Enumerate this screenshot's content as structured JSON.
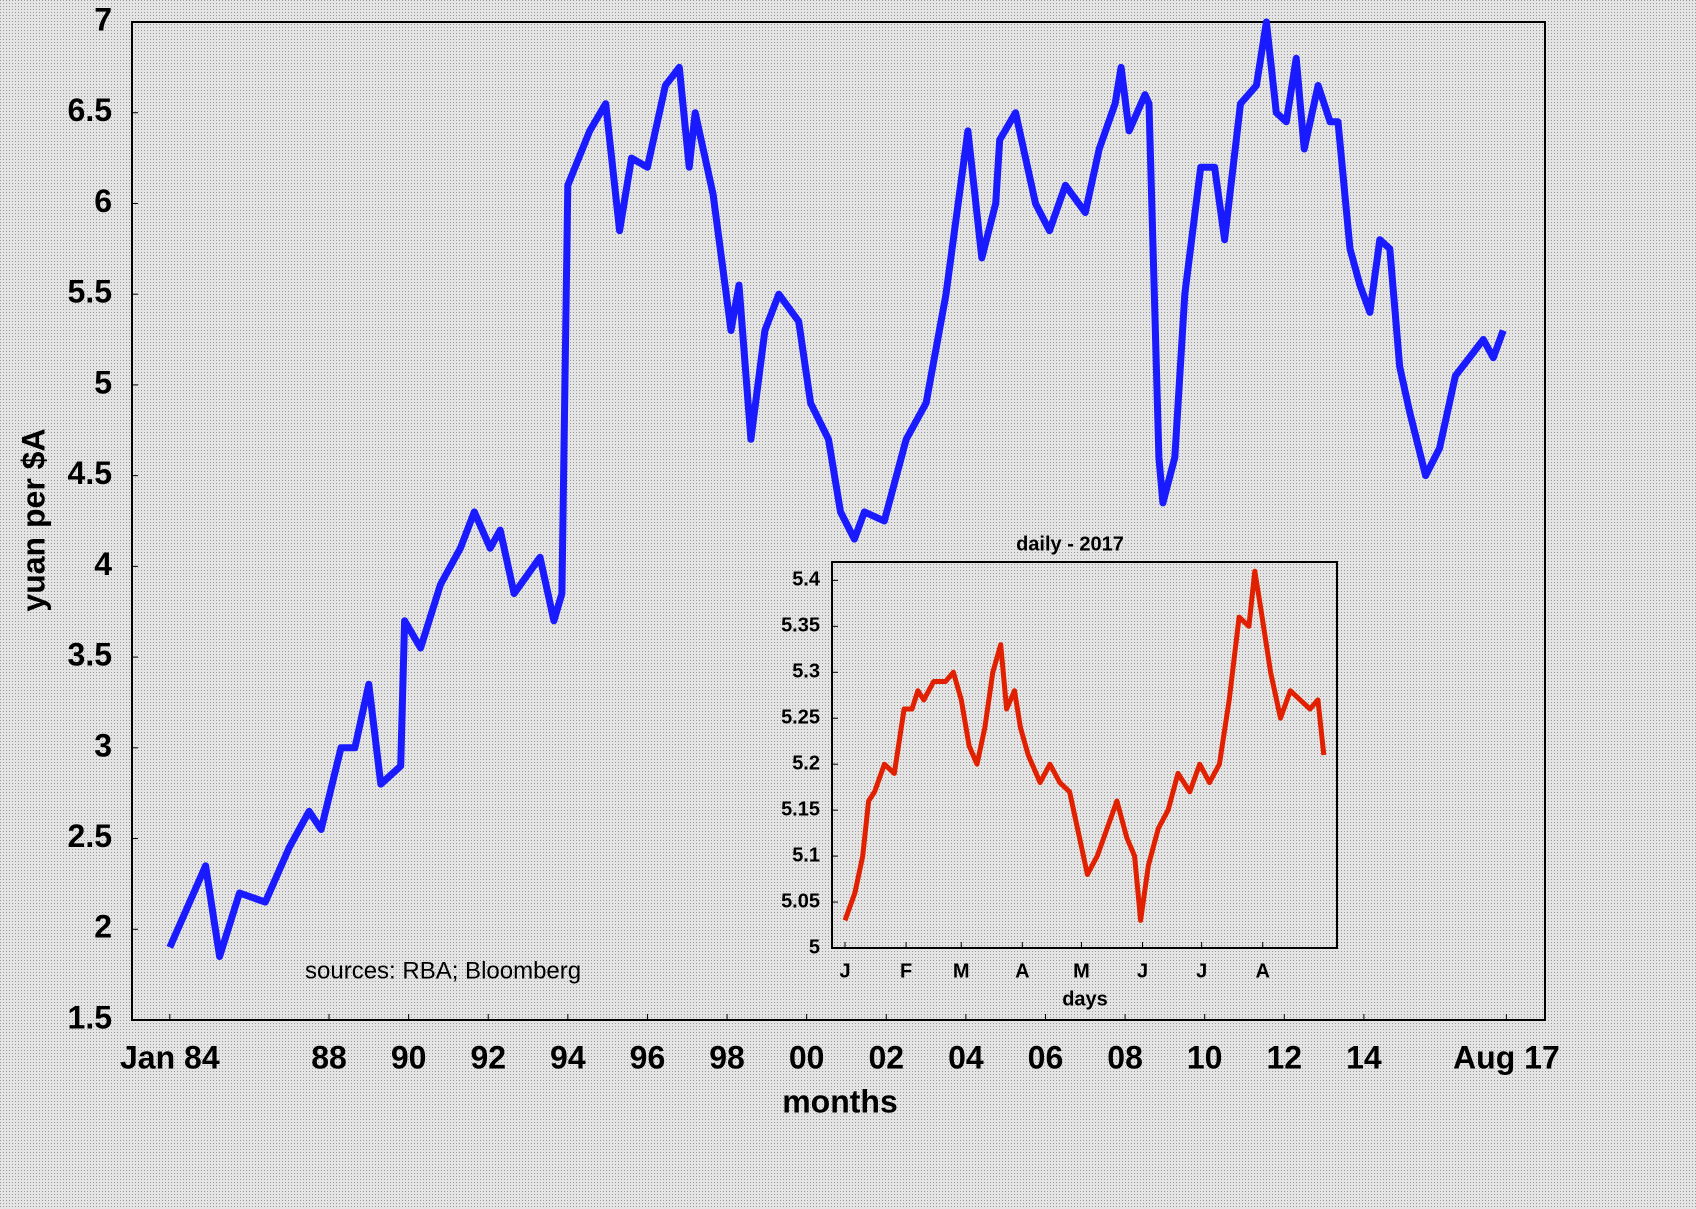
{
  "chart_data": [
    {
      "type": "line",
      "ylabel": "yuan per $A",
      "xlabel": "months",
      "annotation": "sources: RBA; Bloomberg",
      "x": [
        1984.0,
        1984.9,
        1985.25,
        1985.75,
        1986.4,
        1987.0,
        1987.5,
        1987.8,
        1988.3,
        1988.65,
        1989.0,
        1989.3,
        1989.8,
        1989.9,
        1990.3,
        1990.8,
        1991.3,
        1991.65,
        1992.05,
        1992.3,
        1992.65,
        1993.3,
        1993.65,
        1993.85,
        1994.0,
        1994.55,
        1994.95,
        1995.3,
        1995.6,
        1996.0,
        1996.45,
        1996.8,
        1997.05,
        1997.2,
        1997.65,
        1998.1,
        1998.3,
        1998.6,
        1998.95,
        1999.3,
        1999.8,
        2000.1,
        2000.55,
        2000.85,
        2001.2,
        2001.45,
        2001.95,
        2002.5,
        2003.0,
        2003.5,
        2004.05,
        2004.4,
        2004.75,
        2004.85,
        2005.25,
        2005.75,
        2006.1,
        2006.5,
        2007.0,
        2007.35,
        2007.75,
        2007.9,
        2008.1,
        2008.5,
        2008.6,
        2008.85,
        2008.95,
        2009.25,
        2009.5,
        2009.9,
        2010.25,
        2010.5,
        2010.9,
        2011.3,
        2011.55,
        2011.8,
        2012.05,
        2012.3,
        2012.5,
        2012.85,
        2013.15,
        2013.35,
        2013.65,
        2013.9,
        2014.15,
        2014.4,
        2014.65,
        2014.9,
        2015.15,
        2015.55,
        2015.9,
        2016.3,
        2016.65,
        2017.0,
        2017.25,
        2017.5
      ],
      "series": [
        {
          "name": "yuan per $A",
          "color": "#1a1aff",
          "values": [
            1.9,
            2.35,
            1.85,
            2.2,
            2.15,
            2.45,
            2.65,
            2.55,
            3.0,
            3.0,
            3.35,
            2.8,
            2.9,
            3.7,
            3.55,
            3.9,
            4.1,
            4.3,
            4.1,
            4.2,
            3.85,
            4.05,
            3.7,
            3.85,
            6.1,
            6.4,
            6.55,
            5.85,
            6.25,
            6.2,
            6.65,
            6.75,
            6.2,
            6.5,
            6.05,
            5.3,
            5.55,
            4.7,
            5.3,
            5.5,
            5.35,
            4.9,
            4.7,
            4.3,
            4.15,
            4.3,
            4.25,
            4.7,
            4.9,
            5.5,
            6.4,
            5.7,
            6.0,
            6.35,
            6.5,
            6.0,
            5.85,
            6.1,
            5.95,
            6.3,
            6.55,
            6.75,
            6.4,
            6.6,
            6.55,
            4.6,
            4.35,
            4.6,
            5.5,
            6.2,
            6.2,
            5.8,
            6.55,
            6.65,
            7.0,
            6.5,
            6.45,
            6.8,
            6.3,
            6.65,
            6.45,
            6.45,
            5.75,
            5.55,
            5.4,
            5.8,
            5.75,
            5.1,
            4.85,
            4.5,
            4.65,
            5.05,
            5.15,
            5.25,
            5.15,
            5.3
          ]
        }
      ],
      "xlim": [
        1983.05,
        2018.55
      ],
      "ylim": [
        1.5,
        7
      ],
      "xticks": [
        {
          "value": 1984,
          "label": "Jan 84"
        },
        {
          "value": 1988,
          "label": "88"
        },
        {
          "value": 1990,
          "label": "90"
        },
        {
          "value": 1992,
          "label": "92"
        },
        {
          "value": 1994,
          "label": "94"
        },
        {
          "value": 1996,
          "label": "96"
        },
        {
          "value": 1998,
          "label": "98"
        },
        {
          "value": 2000,
          "label": "00"
        },
        {
          "value": 2002,
          "label": "02"
        },
        {
          "value": 2004,
          "label": "04"
        },
        {
          "value": 2006,
          "label": "06"
        },
        {
          "value": 2008,
          "label": "08"
        },
        {
          "value": 2010,
          "label": "10"
        },
        {
          "value": 2012,
          "label": "12"
        },
        {
          "value": 2014,
          "label": "14"
        },
        {
          "value": 2017.58,
          "label": "Aug 17"
        }
      ],
      "yticks": [
        1.5,
        2,
        2.5,
        3,
        3.5,
        4,
        4.5,
        5,
        5.5,
        6,
        6.5,
        7
      ]
    },
    {
      "type": "line",
      "title": "daily - 2017",
      "xlabel": "days",
      "x": [
        1,
        6,
        10,
        13,
        16,
        21,
        26,
        31,
        35,
        38,
        41,
        46,
        52,
        56,
        60,
        64,
        68,
        72,
        76,
        80,
        83,
        87,
        90,
        94,
        100,
        105,
        110,
        115,
        120,
        124,
        129,
        134,
        139,
        144,
        148,
        151,
        155,
        160,
        165,
        170,
        176,
        181,
        186,
        191,
        196,
        201,
        206,
        209,
        212,
        217,
        222,
        227,
        232,
        237,
        241,
        244
      ],
      "series": [
        {
          "name": "daily",
          "color": "#e02000",
          "values": [
            5.03,
            5.06,
            5.1,
            5.16,
            5.17,
            5.2,
            5.19,
            5.26,
            5.26,
            5.28,
            5.27,
            5.29,
            5.29,
            5.3,
            5.27,
            5.22,
            5.2,
            5.24,
            5.3,
            5.33,
            5.26,
            5.28,
            5.24,
            5.21,
            5.18,
            5.2,
            5.18,
            5.17,
            5.12,
            5.08,
            5.1,
            5.13,
            5.16,
            5.12,
            5.1,
            5.03,
            5.09,
            5.13,
            5.15,
            5.19,
            5.17,
            5.2,
            5.18,
            5.2,
            5.27,
            5.36,
            5.35,
            5.41,
            5.37,
            5.3,
            5.25,
            5.28,
            5.27,
            5.26,
            5.27,
            5.21
          ]
        }
      ],
      "xlim": [
        -5.6,
        250.7
      ],
      "ylim": [
        5,
        5.42
      ],
      "xticks": [
        {
          "value": 1,
          "label": "J"
        },
        {
          "value": 32,
          "label": "F"
        },
        {
          "value": 60,
          "label": "M"
        },
        {
          "value": 91,
          "label": "A"
        },
        {
          "value": 121,
          "label": "M"
        },
        {
          "value": 152,
          "label": "J"
        },
        {
          "value": 182,
          "label": "J"
        },
        {
          "value": 213,
          "label": "A"
        }
      ],
      "yticks": [
        5,
        5.05,
        5.1,
        5.15,
        5.2,
        5.25,
        5.3,
        5.35,
        5.4
      ]
    }
  ]
}
